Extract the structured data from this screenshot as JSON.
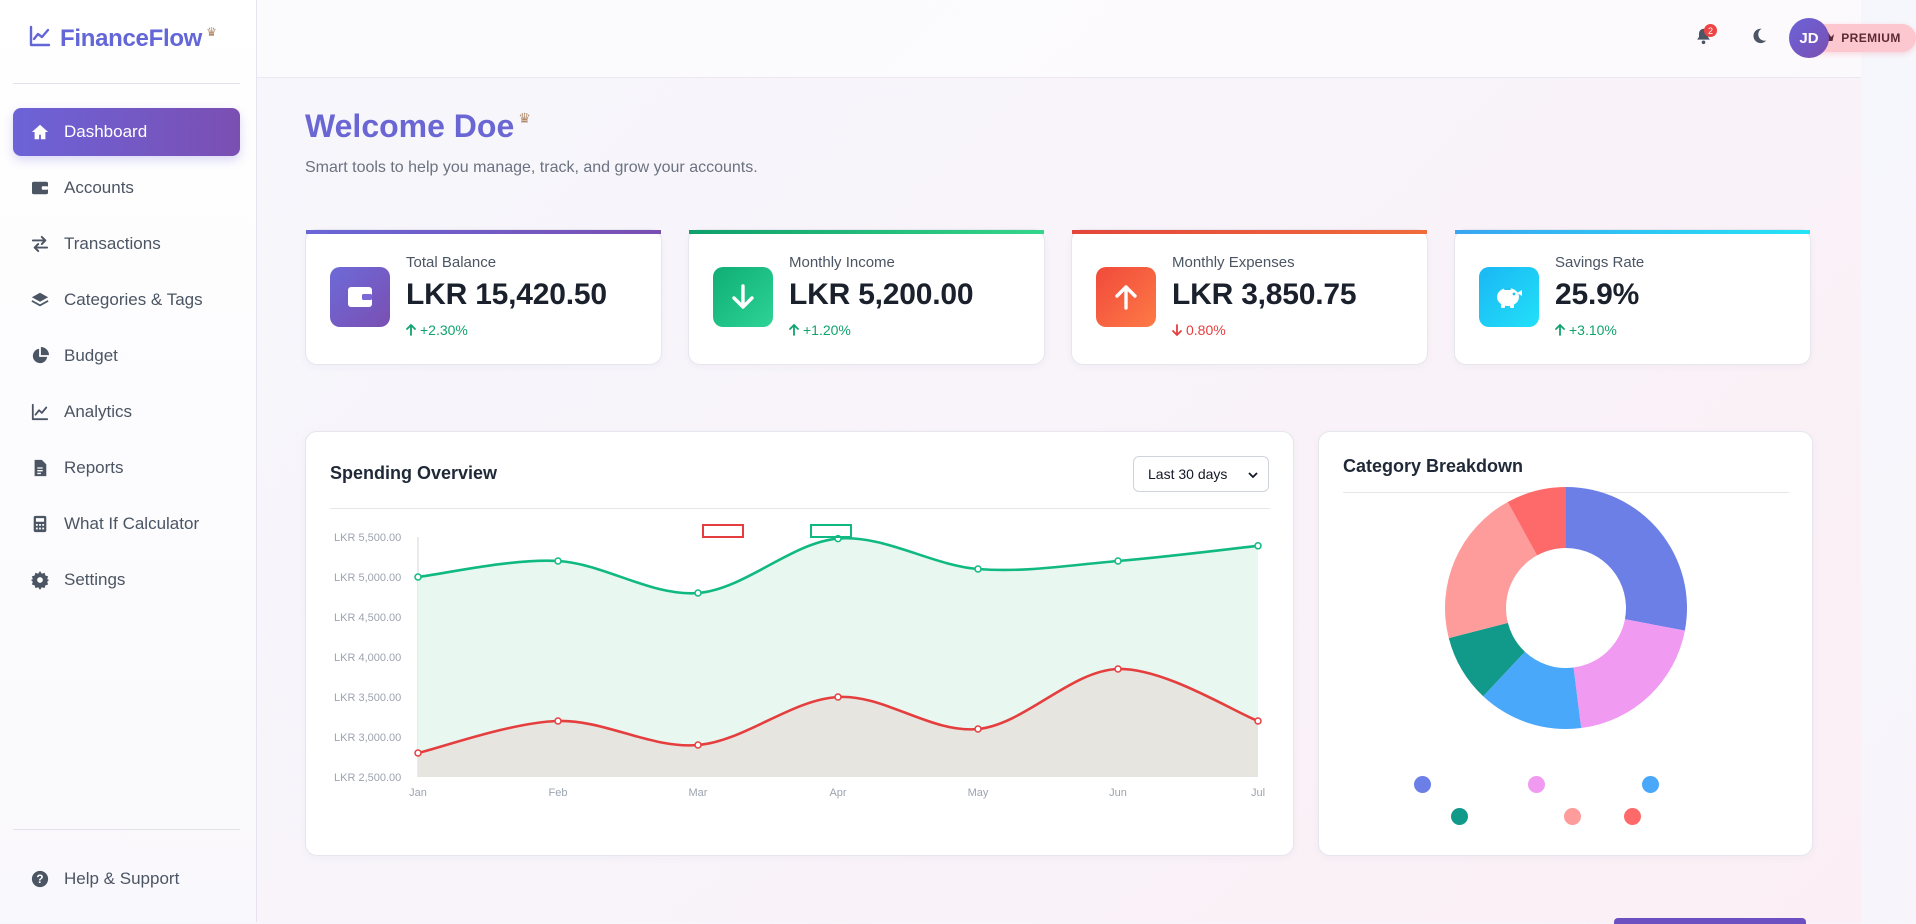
{
  "app": {
    "name": "FinanceFlow"
  },
  "sidebar": {
    "items": [
      {
        "label": "Dashboard",
        "icon": "home-icon",
        "active": true
      },
      {
        "label": "Accounts",
        "icon": "wallet-icon"
      },
      {
        "label": "Transactions",
        "icon": "exchange-icon"
      },
      {
        "label": "Categories & Tags",
        "icon": "layers-icon"
      },
      {
        "label": "Budget",
        "icon": "pie-icon"
      },
      {
        "label": "Analytics",
        "icon": "line-chart-icon"
      },
      {
        "label": "Reports",
        "icon": "document-icon"
      },
      {
        "label": "What If Calculator",
        "icon": "calculator-icon"
      },
      {
        "label": "Settings",
        "icon": "gear-icon"
      }
    ],
    "help": {
      "label": "Help & Support",
      "icon": "question-icon"
    }
  },
  "header": {
    "premium_label": "PREMIUM",
    "notification_count": "2",
    "avatar_initials": "JD"
  },
  "welcome": {
    "title": "Welcome Doe",
    "subtitle": "Smart tools to help you manage, track, and grow your accounts."
  },
  "stats": [
    {
      "label": "Total Balance",
      "value": "LKR 15,420.50",
      "change": "+2.30%",
      "direction": "up",
      "icon": "wallet-icon",
      "accent": "#6c63d8"
    },
    {
      "label": "Monthly Income",
      "value": "LKR 5,200.00",
      "change": "+1.20%",
      "direction": "up",
      "icon": "arrow-down-icon",
      "accent": "#10b981"
    },
    {
      "label": "Monthly Expenses",
      "value": "LKR 3,850.75",
      "change": "0.80%",
      "direction": "down",
      "icon": "arrow-up-icon",
      "accent": "#f05a3b"
    },
    {
      "label": "Savings Rate",
      "value": "25.9%",
      "change": "+3.10%",
      "direction": "up",
      "icon": "piggy-bank-icon",
      "accent": "#1ec8f0"
    }
  ],
  "spending": {
    "title": "Spending Overview",
    "range_selected": "Last 30 days"
  },
  "category": {
    "title": "Category Breakdown"
  },
  "chart_data": [
    {
      "type": "area",
      "x": [
        "Jan",
        "Feb",
        "Mar",
        "Apr",
        "May",
        "Jun",
        "Jul"
      ],
      "ylim": [
        2500,
        5500
      ],
      "yticks": [
        "LKR 2,500.00",
        "LKR 3,000.00",
        "LKR 3,500.00",
        "LKR 4,000.00",
        "LKR 4,500.00",
        "LKR 5,000.00",
        "LKR 5,500.00"
      ],
      "series": [
        {
          "values": [
            5000,
            5200,
            4800,
            5480,
            5100,
            5200,
            5390
          ],
          "color": "#10b981",
          "fill": "#e8f7f0"
        },
        {
          "values": [
            2800,
            3200,
            2900,
            3500,
            3100,
            3850,
            3200
          ],
          "color": "#e53e3e",
          "fill": "#e7e5e0"
        }
      ],
      "legend": "top"
    },
    {
      "type": "pie",
      "style": "donut",
      "values": [
        28,
        20,
        14,
        9,
        21,
        8
      ],
      "colors": [
        "#6b7fe6",
        "#f09af2",
        "#4aa8fa",
        "#11998a",
        "#fe9b9b",
        "#fe6a6a"
      ],
      "legend": "bottom"
    }
  ]
}
